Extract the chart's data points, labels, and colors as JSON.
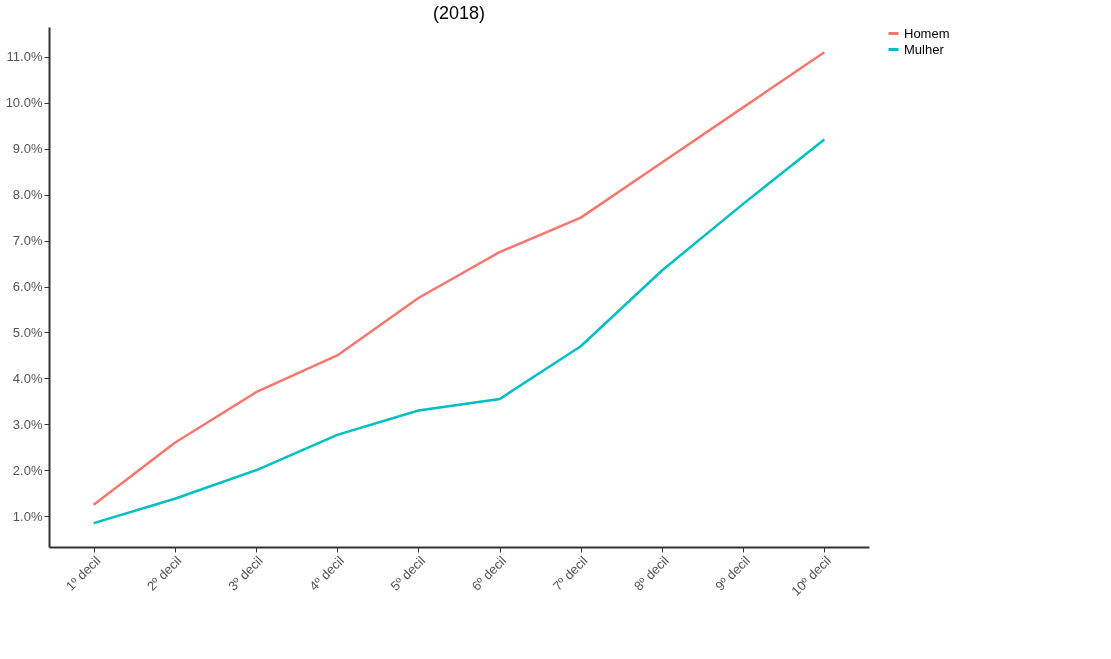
{
  "chart_data": {
    "type": "line",
    "title": "(2018)",
    "categories": [
      "1º decil",
      "2º decil",
      "3º decil",
      "4º decil",
      "5º decil",
      "6º decil",
      "7º decil",
      "8º decil",
      "9º decil",
      "10º decil"
    ],
    "series": [
      {
        "name": "Homem",
        "color": "#f8766d",
        "values": [
          1.25,
          2.6,
          3.7,
          4.5,
          5.75,
          6.75,
          7.5,
          8.7,
          9.9,
          11.1
        ]
      },
      {
        "name": "Mulher",
        "color": "#00bfc4",
        "values": [
          0.85,
          1.38,
          2.0,
          2.77,
          3.3,
          3.55,
          4.7,
          6.35,
          7.8,
          9.2
        ]
      }
    ],
    "ylim": [
      0.33,
      11.65
    ],
    "yticks": [
      {
        "value": 1,
        "label": "1.0%"
      },
      {
        "value": 2,
        "label": "2.0%"
      },
      {
        "value": 3,
        "label": "3.0%"
      },
      {
        "value": 4,
        "label": "4.0%"
      },
      {
        "value": 5,
        "label": "5.0%"
      },
      {
        "value": 6,
        "label": "6.0%"
      },
      {
        "value": 7,
        "label": "7.0%"
      },
      {
        "value": 8,
        "label": "8.0%"
      },
      {
        "value": 9,
        "label": "9.0%"
      },
      {
        "value": 10,
        "label": "10.0%"
      },
      {
        "value": 11,
        "label": "11.0%"
      }
    ],
    "grid": false,
    "legend": "right",
    "line_style": "solid",
    "marker": "none"
  }
}
